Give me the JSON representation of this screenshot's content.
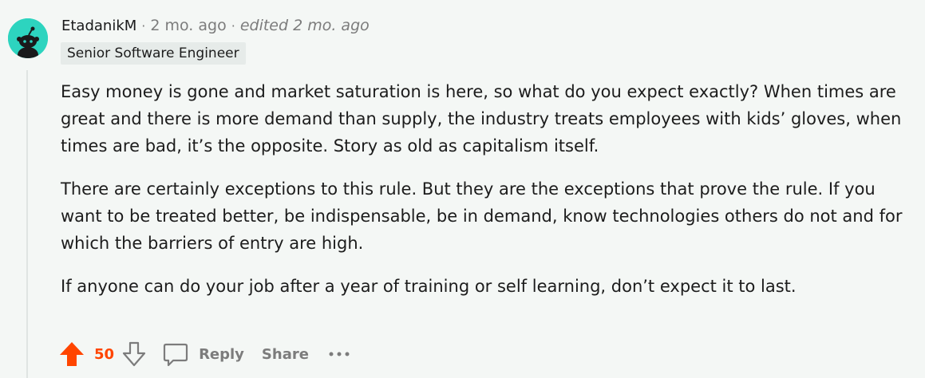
{
  "comment": {
    "author": "EtadanikM",
    "separator": "·",
    "age": "2 mo. ago",
    "edited": "edited 2 mo. ago",
    "flair": "Senior Software Engineer",
    "paragraphs": [
      "Easy money is gone and market saturation is here, so what do you expect exactly? When times are great and there is more demand than supply, the industry treats employees with kids’ gloves, when times are bad, it’s the opposite. Story as old as capitalism itself.",
      "There are certainly exceptions to this rule. But they are the exceptions that prove the rule. If you want to be treated better, be indispensable, be in demand, know technologies others do not and for which the barriers of entry are high.",
      "If anyone can do your job after a year of training or self learning, don’t expect it to last."
    ]
  },
  "actions": {
    "score": "50",
    "reply_label": "Reply",
    "share_label": "Share",
    "more_label": "···"
  },
  "colors": {
    "upvote": "#ff4500",
    "avatar_bg": "#2dd4bf",
    "muted": "#7c7c7c",
    "background": "#f4f7f5"
  },
  "icons": [
    "avatar-snoo-icon",
    "upvote-arrow-icon",
    "downvote-arrow-icon",
    "comment-bubble-icon",
    "more-options-icon"
  ]
}
